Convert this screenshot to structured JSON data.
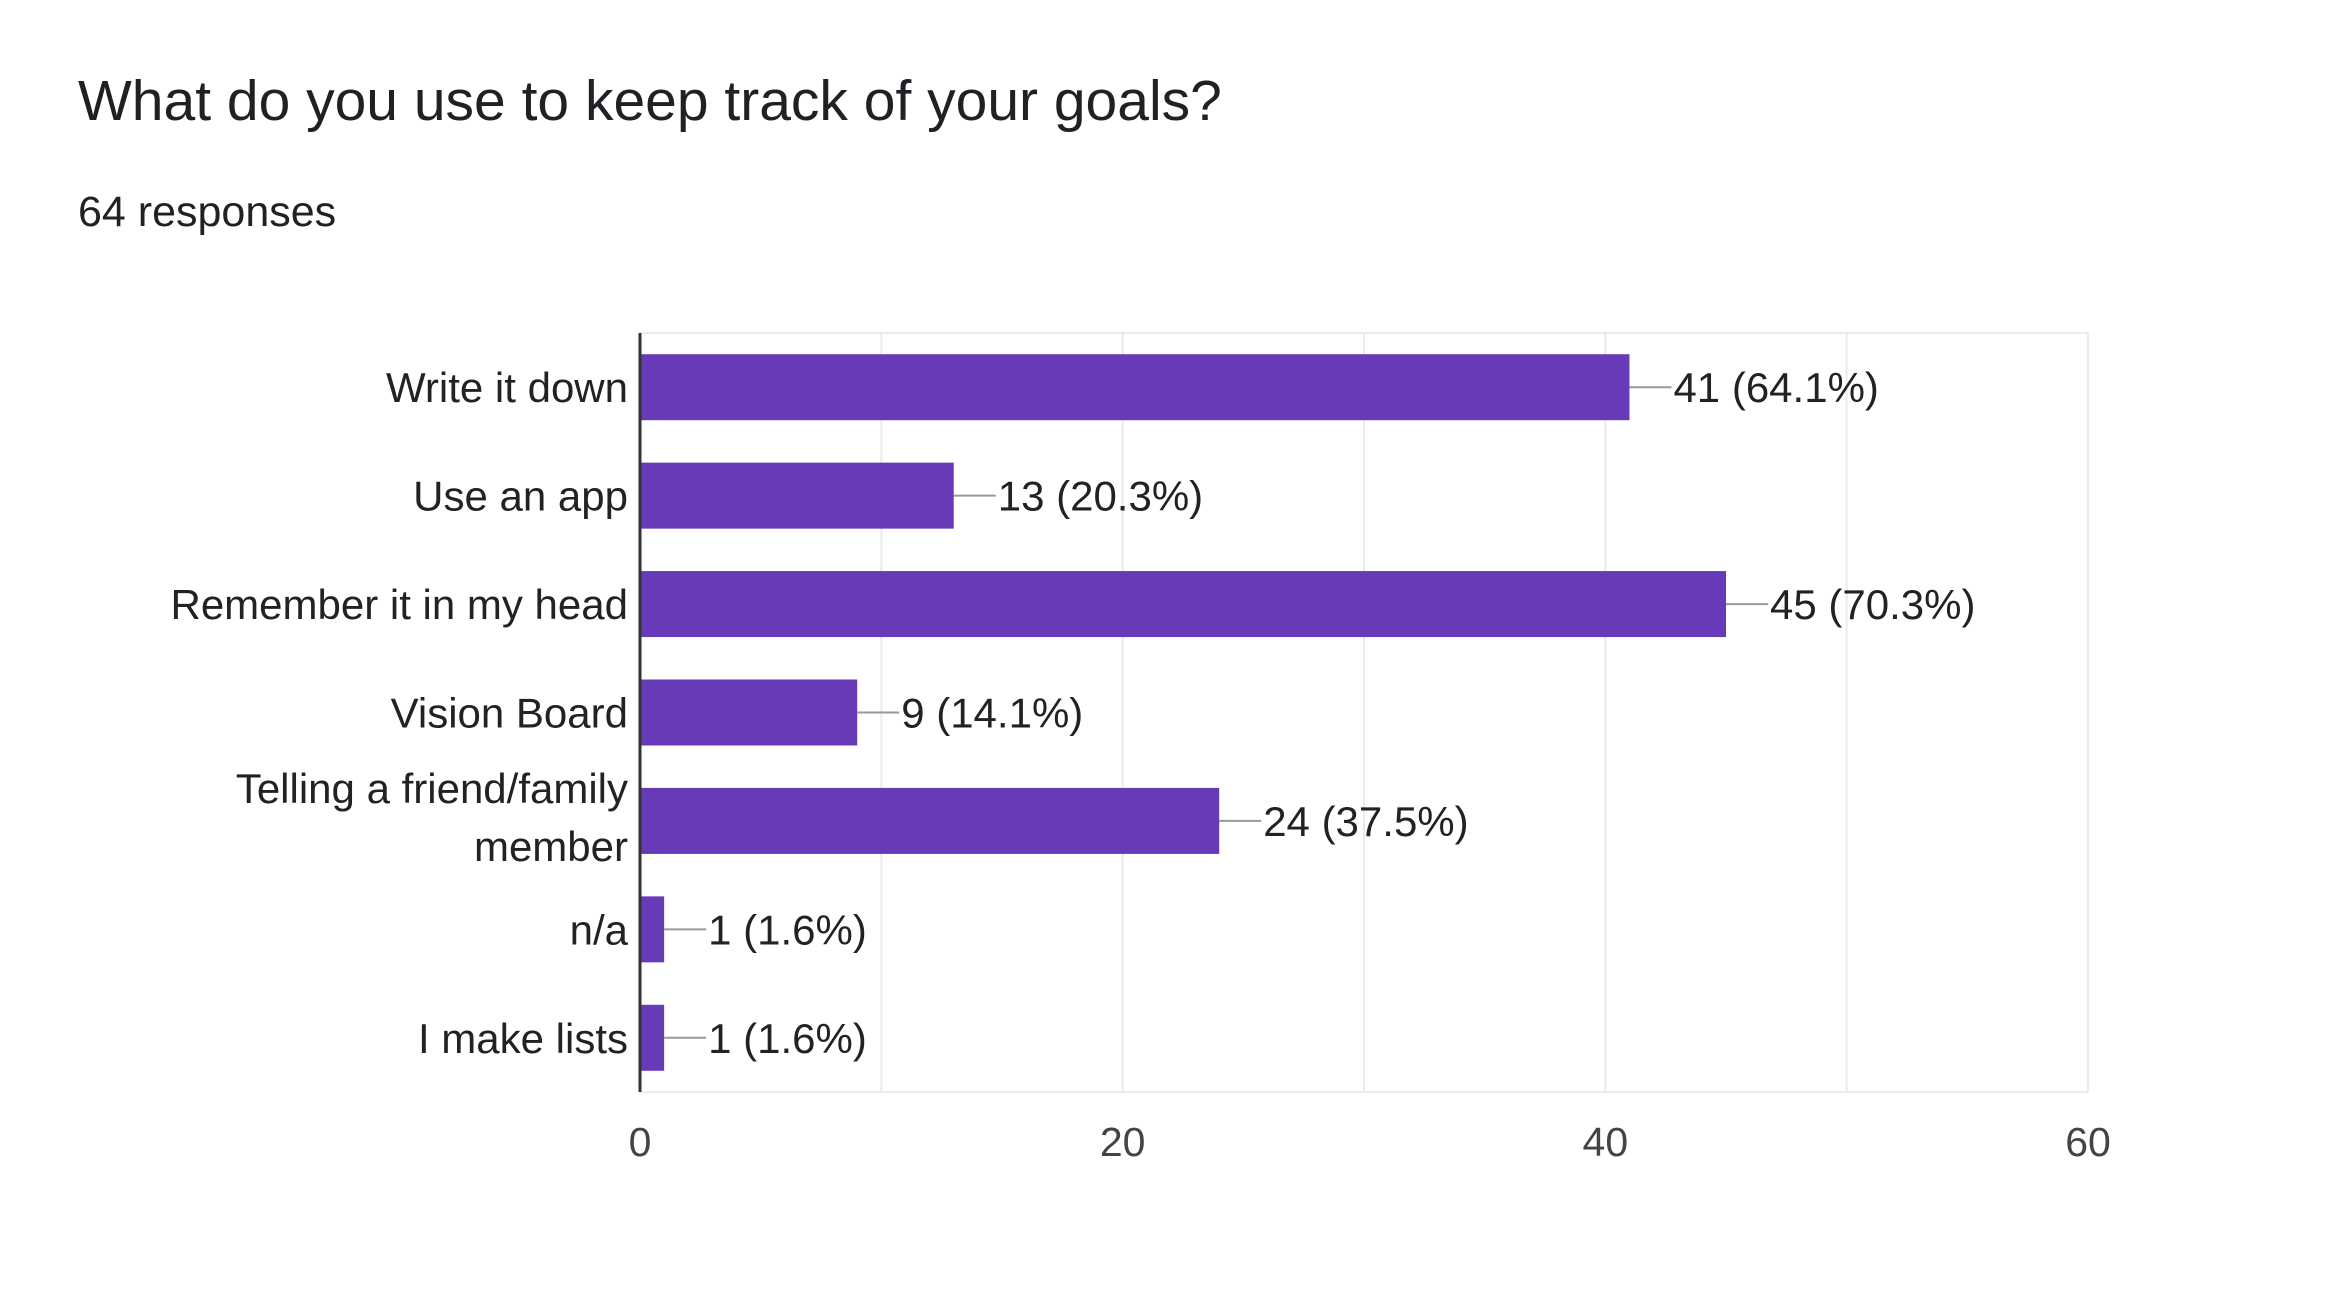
{
  "header": {
    "title": "What do you use to keep track of your goals?",
    "responses": "64 responses"
  },
  "chart_data": {
    "type": "bar",
    "orientation": "horizontal",
    "title": "What do you use to keep track of your goals?",
    "subtitle": "64 responses",
    "categories": [
      "Write it down",
      "Use an app",
      "Remember it in my head",
      "Vision Board",
      "Telling a friend/family member",
      "n/a",
      "I make lists"
    ],
    "values": [
      41,
      13,
      45,
      9,
      24,
      1,
      1
    ],
    "data_labels": [
      "41 (64.1%)",
      "13 (20.3%)",
      "45 (70.3%)",
      "9 (14.1%)",
      "24 (37.5%)",
      "1 (1.6%)",
      "1 (1.6%)"
    ],
    "xlim": [
      0,
      60
    ],
    "x_ticks": [
      0,
      20,
      40,
      60
    ],
    "x_tick_labels": [
      "0",
      "20",
      "40",
      "60"
    ],
    "xlabel": "",
    "ylabel": "",
    "grid": true,
    "bar_color": "#673ab7",
    "gridline_color": "#ebebeb",
    "leader_color": "#999999"
  }
}
